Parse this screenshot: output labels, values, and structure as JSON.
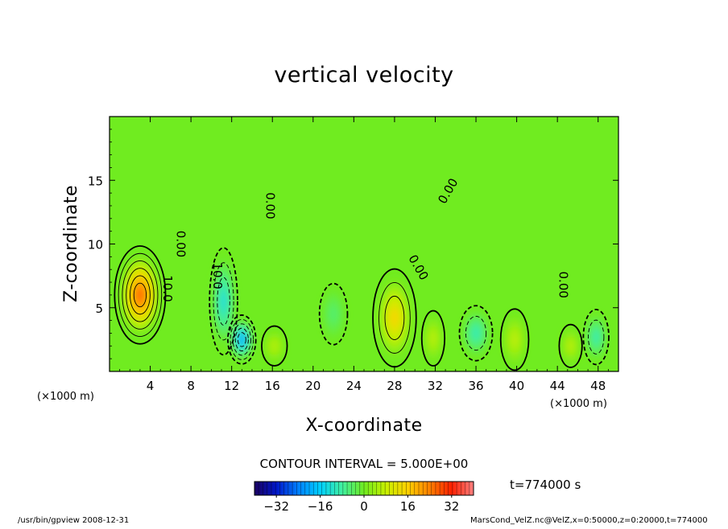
{
  "chart_data": {
    "type": "heatmap",
    "title": "vertical velocity",
    "xlabel": "X-coordinate",
    "ylabel": "Z-coordinate",
    "x_unit_text": "(×1000 m)",
    "y_unit_text": "(×1000 m)",
    "xlim": [
      0,
      50
    ],
    "ylim": [
      0,
      20
    ],
    "x_ticks": [
      4,
      8,
      12,
      16,
      20,
      24,
      28,
      32,
      36,
      40,
      44,
      48
    ],
    "y_ticks": [
      5,
      10,
      15
    ],
    "contour_interval_text": "CONTOUR INTERVAL = 5.000E+00",
    "time_text": "t=774000 s",
    "colorbar": {
      "min": -40,
      "max": 40,
      "ticks": [
        -32,
        -16,
        0,
        16,
        32
      ],
      "tick_labels": [
        "−32",
        "−16",
        "0",
        "16",
        "32"
      ],
      "colormap": [
        "#1a0060",
        "#0016c8",
        "#0080ff",
        "#00d0ff",
        "#40f0a0",
        "#70ec20",
        "#c8f000",
        "#ffd000",
        "#ff8000",
        "#ff2000",
        "#ff8080"
      ]
    },
    "contour_labels": [
      {
        "text": "10.0",
        "x": 5.3,
        "z": 6.5,
        "rotate": 90
      },
      {
        "text": "0.00",
        "x": 6.6,
        "z": 10.0,
        "rotate": 90
      },
      {
        "text": "10.0",
        "x": 10.2,
        "z": 7.5,
        "rotate": 90
      },
      {
        "text": "0.00",
        "x": 15.4,
        "z": 13.0,
        "rotate": 90
      },
      {
        "text": "0.00",
        "x": 30.0,
        "z": 8.0,
        "rotate": 60
      },
      {
        "text": "0.00",
        "x": 33.6,
        "z": 14.0,
        "rotate": -60
      },
      {
        "text": "0.00",
        "x": 44.2,
        "z": 6.8,
        "rotate": 90
      }
    ],
    "field_features": [
      {
        "sign": "pos",
        "x": 3.0,
        "z": 6.0,
        "rx": 2.0,
        "rz": 3.2,
        "amp": 32
      },
      {
        "sign": "neg",
        "x": 11.2,
        "z": 5.5,
        "rx": 1.1,
        "rz": 3.5,
        "amp": 16
      },
      {
        "sign": "neg",
        "x": 13.0,
        "z": 2.5,
        "rx": 1.1,
        "rz": 1.6,
        "amp": 26
      },
      {
        "sign": "pos",
        "x": 16.2,
        "z": 2.0,
        "rx": 1.0,
        "rz": 1.3,
        "amp": 8
      },
      {
        "sign": "neg",
        "x": 22.0,
        "z": 4.5,
        "rx": 1.1,
        "rz": 2.0,
        "amp": 6
      },
      {
        "sign": "pos",
        "x": 28.0,
        "z": 4.2,
        "rx": 1.7,
        "rz": 3.2,
        "amp": 18
      },
      {
        "sign": "pos",
        "x": 31.8,
        "z": 2.6,
        "rx": 0.9,
        "rz": 1.8,
        "amp": 9
      },
      {
        "sign": "neg",
        "x": 36.0,
        "z": 3.0,
        "rx": 1.3,
        "rz": 1.8,
        "amp": 12
      },
      {
        "sign": "pos",
        "x": 39.8,
        "z": 2.5,
        "rx": 1.1,
        "rz": 2.0,
        "amp": 9
      },
      {
        "sign": "pos",
        "x": 45.3,
        "z": 2.0,
        "rx": 0.9,
        "rz": 1.4,
        "amp": 9
      },
      {
        "sign": "neg",
        "x": 47.8,
        "z": 2.7,
        "rx": 1.0,
        "rz": 1.8,
        "amp": 12
      }
    ],
    "grid": false
  },
  "footer": {
    "left": "/usr/bin/gpview   2008-12-31",
    "right": "MarsCond_VelZ.nc@VelZ,x=0:50000,z=0:20000,t=774000"
  }
}
